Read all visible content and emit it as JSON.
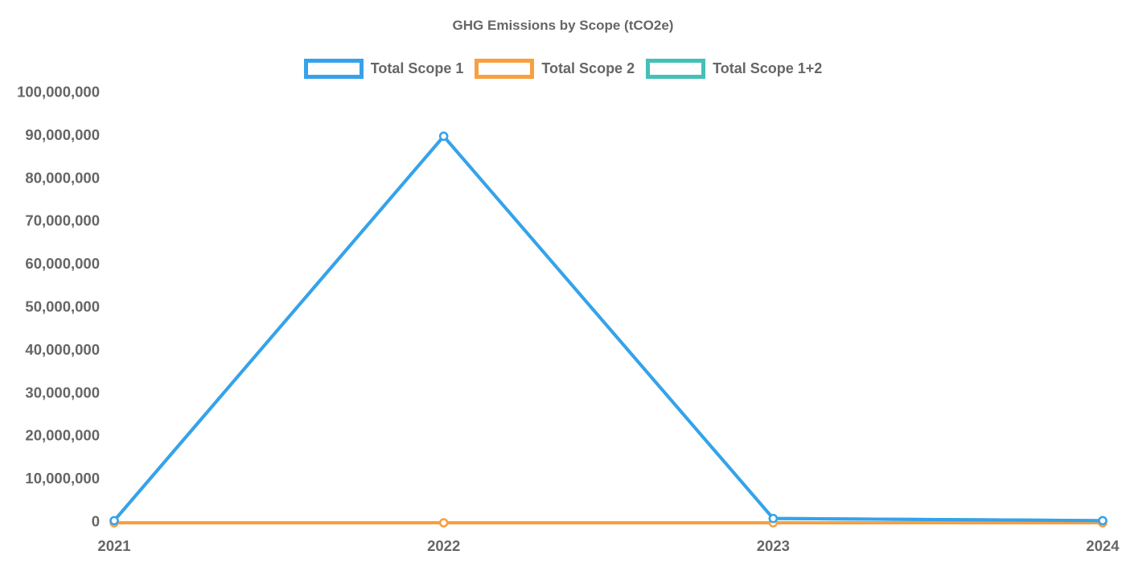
{
  "page": {
    "background_color": "#ffffff",
    "text_color": "#666666"
  },
  "chart_data": {
    "type": "line",
    "title": "GHG Emissions by Scope (tCO2e)",
    "categories": [
      "2021",
      "2022",
      "2023",
      "2024"
    ],
    "series": [
      {
        "name": "Total Scope 1",
        "color": "#36A2EB",
        "values": [
          500000,
          90000000,
          1000000,
          500000
        ]
      },
      {
        "name": "Total Scope 2",
        "color": "#F99F40",
        "values": [
          0,
          0,
          0,
          0
        ]
      },
      {
        "name": "Total Scope 1+2",
        "color": "#45C0B8",
        "values": [
          500000,
          90000000,
          1000000,
          500000
        ]
      }
    ],
    "ylim": [
      0,
      100000000
    ],
    "y_tick_step": 10000000,
    "y_tick_labels": [
      "0",
      "10,000,000",
      "20,000,000",
      "30,000,000",
      "40,000,000",
      "50,000,000",
      "60,000,000",
      "70,000,000",
      "80,000,000",
      "90,000,000",
      "100,000,000"
    ],
    "xlabel": "",
    "ylabel": "",
    "grid": false,
    "axes_lines": false,
    "legend_position": "top",
    "marker_style": "open-circle",
    "note_overlap": "Total Scope 1+2 line coincides with Total Scope 1 and is hidden beneath it"
  }
}
